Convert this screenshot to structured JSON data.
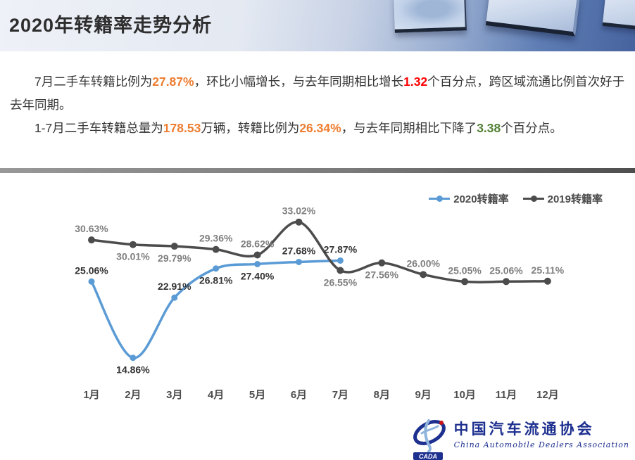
{
  "header": {
    "title": "2020年转籍率走势分析"
  },
  "summary": {
    "p1": {
      "seg1": "7月二手车转籍比例为",
      "val1": "27.87%",
      "seg2": "，环比小幅增长，与去年同期相比增长",
      "val2": "1.32",
      "seg3": "个百分点，跨区域流通比例首次好于去年同期。"
    },
    "p2": {
      "seg1": "1-7月二手车转籍总量为",
      "val1": "178.53",
      "seg2": "万辆，转籍比例为",
      "val2": "26.34%",
      "seg3": "，与去年同期相比下降了",
      "val3": "3.38",
      "seg4": "个百分点。"
    }
  },
  "colors": {
    "orange": "#ED7D31",
    "red": "#FF0000",
    "green": "#538135",
    "line_2020": "#5B9BD5",
    "line_2019": "#4C4C4C",
    "label_2020": "#333333",
    "label_2019": "#7F7F7F",
    "axis_text": "#4D4D4D",
    "logo_navy": "#1D2F8F",
    "logo_red": "#CC1414",
    "logo_lightblue": "#8FB4DC"
  },
  "chart_data": {
    "type": "line",
    "title": "",
    "xlabel": "",
    "ylabel": "",
    "grid": false,
    "y_axis_visible": false,
    "legend_position": "top-right",
    "ylim": [
      14,
      34
    ],
    "categories": [
      "1月",
      "2月",
      "3月",
      "4月",
      "5月",
      "6月",
      "7月",
      "8月",
      "9月",
      "10月",
      "11月",
      "12月"
    ],
    "series": [
      {
        "name": "2020转籍率",
        "color": "#5B9BD5",
        "label_color": "#333333",
        "values": [
          25.06,
          14.86,
          22.91,
          26.81,
          27.4,
          27.68,
          27.87
        ],
        "labels": [
          "25.06%",
          "14.86%",
          "22.91%",
          "26.81%",
          "27.40%",
          "27.68%",
          "27.87%"
        ],
        "label_pos": [
          "above",
          "below",
          "above",
          "below",
          "below",
          "above",
          "above"
        ]
      },
      {
        "name": "2019转籍率",
        "color": "#4C4C4C",
        "label_color": "#7F7F7F",
        "values": [
          30.63,
          30.01,
          29.79,
          29.36,
          28.62,
          33.02,
          26.55,
          27.56,
          26.0,
          25.05,
          25.06,
          25.11
        ],
        "labels": [
          "30.63%",
          "30.01%",
          "29.79%",
          "29.36%",
          "28.62%",
          "33.02%",
          "26.55%",
          "27.56%",
          "26.00%",
          "25.05%",
          "25.06%",
          "25.11%"
        ],
        "label_pos": [
          "above",
          "below",
          "below",
          "above",
          "above",
          "above",
          "below",
          "below",
          "above",
          "above",
          "above",
          "above"
        ]
      }
    ]
  },
  "logo": {
    "emblem_text": "CADA",
    "name_cn": "中国汽车流通协会",
    "name_en": "China Automobile Dealers Association"
  }
}
